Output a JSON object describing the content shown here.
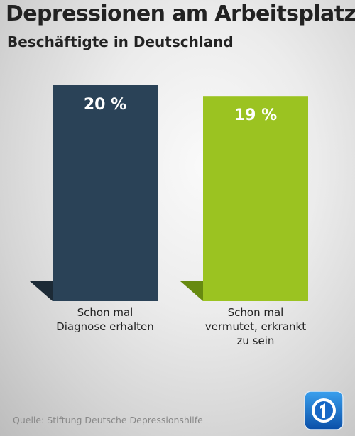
{
  "title": "Depressionen am Arbeitsplatz",
  "subtitle": "Beschäftigte in Deutschland",
  "source": "Quelle: Stiftung Deutsche Depressionshilfe",
  "colors": {
    "bar1": "#2a4257",
    "bar2": "#9bc321",
    "text": "#222222"
  },
  "logo_icon": "ard-tagesschau-logo-icon",
  "chart_data": {
    "type": "bar",
    "categories": [
      [
        "Schon mal",
        "Diagnose erhalten"
      ],
      [
        "Schon mal",
        "vermutet, erkrankt",
        "zu sein"
      ]
    ],
    "values": [
      20,
      19
    ],
    "value_labels": [
      "20 %",
      "19 %"
    ],
    "unit": "%",
    "ylim": [
      0,
      20
    ],
    "grid": false,
    "legend": "none"
  }
}
